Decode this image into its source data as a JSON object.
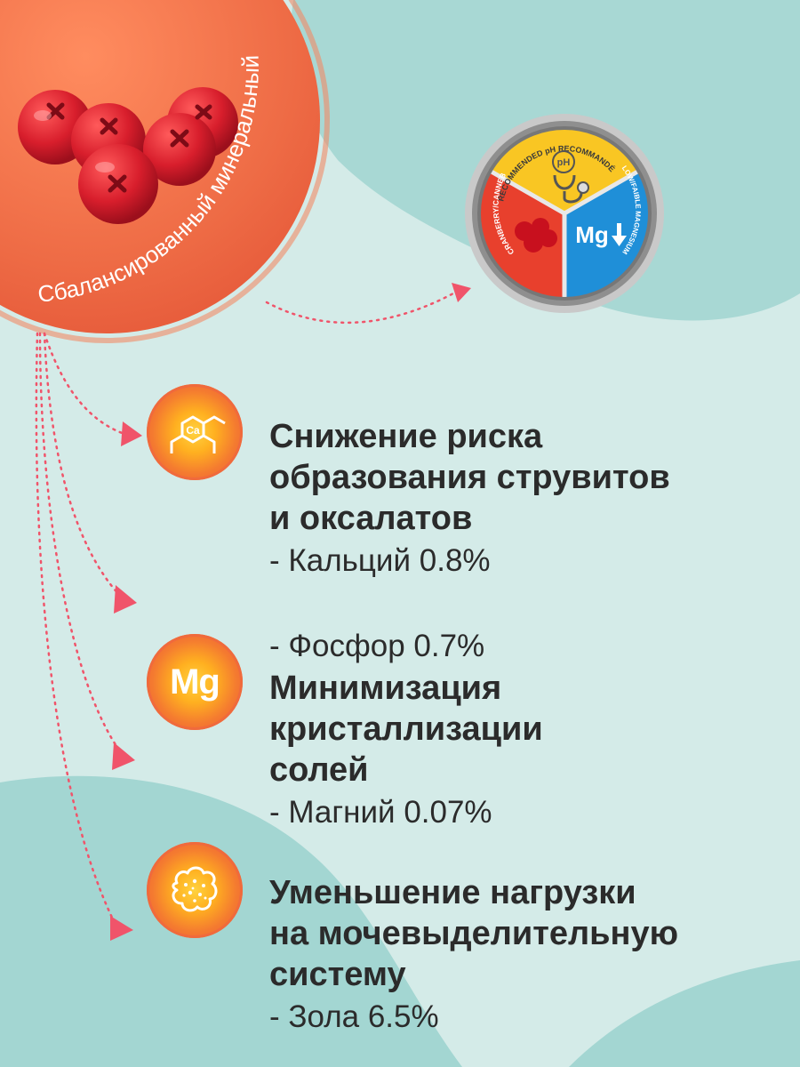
{
  "hero": {
    "curved_label": "Сбалансированный минеральный состав",
    "fruit_icon": "cranberries-icon"
  },
  "badge": {
    "top_label": "RECOMMENDED pH RECOMMANDÉ",
    "ph_text": "pH",
    "left_label": "CRANBERRY/CANNEBERGE",
    "right_label": "LOW/FAIBLE MAGNESIUM",
    "mg_text": "Mg",
    "colors": {
      "top": "#f9c623",
      "left": "#e8402d",
      "right": "#1f8fd8",
      "rim": "#9a9a9a"
    }
  },
  "benefits": [
    {
      "icon": "calcium-molecule-icon",
      "icon_text": "Ca",
      "title": "Снижение риска\nобразования струвитов\nи оксалатов",
      "items": [
        "- Кальций 0.8%",
        "- Фосфор 0.7%"
      ]
    },
    {
      "icon": "magnesium-icon",
      "icon_text": "Mg",
      "title": "Минимизация\nкристаллизации\nсолей",
      "items": [
        "- Магний 0.07%"
      ]
    },
    {
      "icon": "ash-particles-icon",
      "icon_text": "",
      "title": "Уменьшение нагрузки\nна мочевыделительную\nсистему",
      "items": [
        "- Зола 6.5%"
      ]
    }
  ],
  "colors": {
    "background": "#d4ebe8",
    "wave": "#a3d6d2",
    "hero_circle": "#ec6a45",
    "arrow": "#f0546a",
    "text": "#2b2b2b"
  }
}
